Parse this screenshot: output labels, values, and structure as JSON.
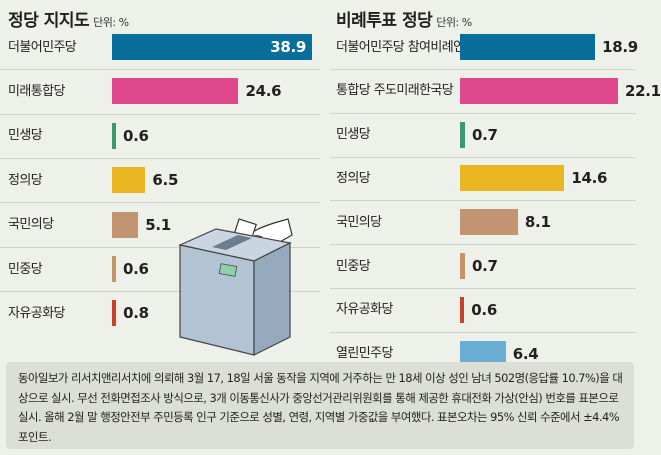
{
  "chart_data": [
    {
      "type": "bar",
      "title": "정당 지지도",
      "unit": "단위: %",
      "categories": [
        "더불어민주당",
        "미래통합당",
        "민생당",
        "정의당",
        "국민의당",
        "민중당",
        "자유공화당"
      ],
      "values": [
        38.9,
        24.6,
        0.6,
        6.5,
        5.1,
        0.6,
        0.8
      ],
      "value_labels": [
        "38.9",
        "24.6",
        "0.6",
        "6.5",
        "5.1",
        "0.6",
        "0.8"
      ],
      "colors": [
        "#0a6e9b",
        "#e0488d",
        "#3c9a6e",
        "#e9b521",
        "#c29472",
        "#c89366",
        "#c9402f"
      ],
      "orientation": "horizontal"
    },
    {
      "type": "bar",
      "title": "비례투표 정당",
      "unit": "단위: %",
      "categories": [
        [
          "더불어민주당 참여",
          "비례연합 정당"
        ],
        [
          "통합당 주도",
          "미래한국당"
        ],
        [
          "민생당"
        ],
        [
          "정의당"
        ],
        [
          "국민의당"
        ],
        [
          "민중당"
        ],
        [
          "자유공화당"
        ],
        [
          "열린민주당"
        ]
      ],
      "values": [
        18.9,
        22.1,
        0.7,
        14.6,
        8.1,
        0.7,
        0.6,
        6.4
      ],
      "value_labels": [
        "18.9",
        "22.1",
        "0.7",
        "14.6",
        "8.1",
        "0.7",
        "0.6",
        "6.4"
      ],
      "colors": [
        "#0a6e9b",
        "#e0488d",
        "#3c9a6e",
        "#e9b521",
        "#c29472",
        "#c89366",
        "#c9402f",
        "#6aaed4"
      ],
      "orientation": "horizontal"
    }
  ],
  "note": "동아일보가 리서치앤리서치에 의뢰해 3월 17, 18일 서울 동작을 지역에 거주하는 만 18세 이상 성인 남녀 502명(응답률 10.7%)을 대상으로 실시. 무선 전화면접조사 방식으로, 3개 이동통신사가 중앙선거관리위원회를 통해 제공한 휴대전화 가상(안심) 번호를 표본으로 실시. 올해 2월 말 행정안전부 주민등록 인구 기준으로 성별, 연령, 지역별 가중값을 부여했다. 표본오차는 95% 신뢰 수준에서 ±4.4%포인트."
}
